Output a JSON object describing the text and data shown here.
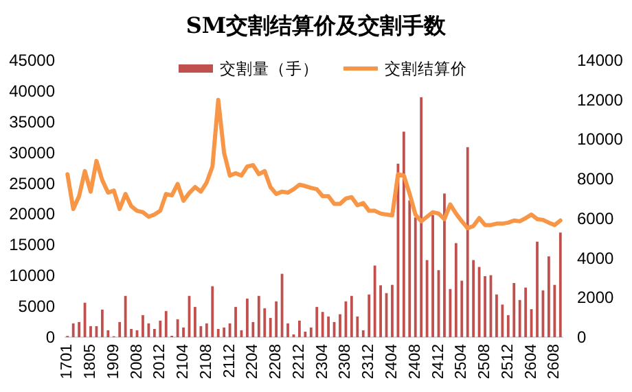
{
  "chart_data": {
    "type": "bar",
    "title": "SM交割结算价及交割手数",
    "categories": [
      "1701",
      null,
      null,
      null,
      "1805",
      null,
      null,
      null,
      "1909",
      null,
      null,
      null,
      "2008",
      null,
      null,
      null,
      "2012",
      null,
      null,
      null,
      "2104",
      null,
      null,
      null,
      "2108",
      null,
      null,
      null,
      "2112",
      null,
      null,
      null,
      "2204",
      null,
      null,
      null,
      "2208",
      null,
      null,
      null,
      "2212",
      null,
      null,
      null,
      "2304",
      null,
      null,
      null,
      "2308",
      null,
      null,
      null,
      "2312",
      null,
      null,
      null,
      "2404",
      null,
      null,
      null,
      "2408",
      null,
      null,
      null,
      "2412",
      null,
      null,
      null,
      "2504",
      null,
      null,
      null,
      "2508",
      null,
      null,
      null,
      "2512",
      null,
      null,
      null,
      "2604",
      null,
      null,
      null,
      "2608",
      null
    ],
    "series": [
      {
        "name": "交割量（手）",
        "color": "#c0504d",
        "values": [
          200,
          2240,
          2460,
          5600,
          1790,
          1790,
          4480,
          1120,
          150,
          2460,
          6710,
          1340,
          1120,
          3580,
          2240,
          1340,
          2690,
          4250,
          220,
          2910,
          1570,
          6710,
          4920,
          1790,
          2240,
          8280,
          1340,
          1570,
          2240,
          4920,
          1120,
          6270,
          2460,
          6710,
          4700,
          3130,
          5820,
          10300,
          2240,
          450,
          2690,
          900,
          1570,
          4920,
          4100,
          3360,
          2460,
          3730,
          5820,
          6710,
          3360,
          1120,
          6940,
          11640,
          8430,
          7160,
          8500,
          28200,
          33400,
          22230,
          19470,
          39000,
          12530,
          19840,
          10890,
          23350,
          7830,
          15290,
          9180,
          30880,
          12530,
          11410,
          9920,
          10070,
          6940,
          5300,
          3580,
          8800,
          6040,
          8060,
          4550,
          15520,
          7610,
          13130,
          8500,
          17010
        ]
      },
      {
        "name": "交割结算价",
        "type": "line",
        "axis": "y2",
        "color": "#f79646",
        "values": [
          8240,
          6480,
          7130,
          8400,
          7360,
          8910,
          7940,
          7310,
          7410,
          6480,
          7240,
          6620,
          6390,
          6320,
          6090,
          6200,
          6390,
          7240,
          7170,
          7750,
          6900,
          7290,
          7590,
          7360,
          7820,
          8630,
          12000,
          9330,
          8170,
          8290,
          8170,
          8630,
          8700,
          8240,
          8400,
          7590,
          7240,
          7360,
          7310,
          7480,
          7710,
          7640,
          7550,
          7480,
          7130,
          7130,
          6740,
          6740,
          7010,
          7080,
          6670,
          6780,
          6390,
          6390,
          6250,
          6200,
          6160,
          8240,
          8170,
          7250,
          6200,
          5860,
          6090,
          6320,
          6250,
          5970,
          6710,
          6250,
          5860,
          5510,
          5620,
          6020,
          5670,
          5670,
          5740,
          5740,
          5790,
          5900,
          5860,
          6020,
          6200,
          5970,
          5930,
          5790,
          5670,
          5900
        ]
      }
    ],
    "ylim": [
      0,
      45000
    ],
    "yticks": [
      0,
      5000,
      10000,
      15000,
      20000,
      25000,
      30000,
      35000,
      40000,
      45000
    ],
    "y2lim": [
      0,
      14000
    ],
    "y2ticks": [
      0,
      2000,
      4000,
      6000,
      8000,
      10000,
      12000,
      14000
    ],
    "legend": "top"
  }
}
